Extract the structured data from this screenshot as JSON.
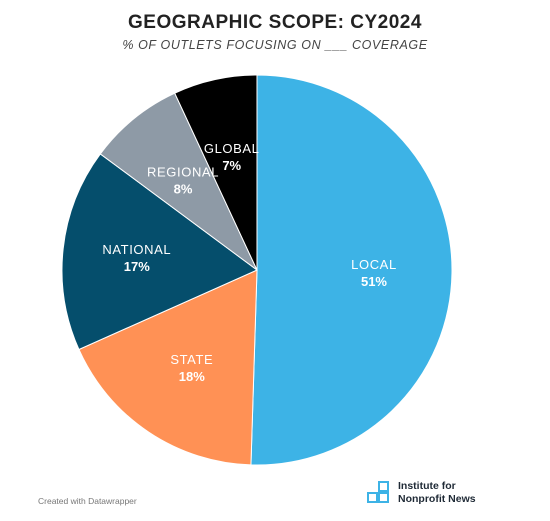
{
  "colors": {
    "local": "#3db3e6",
    "state": "#ff9155",
    "national": "#054e6c",
    "regional": "#8e9aa6",
    "global": "#000000",
    "logo": "#3db3e6"
  },
  "chart_data": {
    "type": "pie",
    "title": "GEOGRAPHIC SCOPE: CY2024",
    "subtitle": "% OF OUTLETS FOCUSING ON ___ COVERAGE",
    "slices": [
      {
        "label": "LOCAL",
        "value": 51,
        "display": "51%",
        "color": "#3db3e6",
        "text_color": "#ffffff"
      },
      {
        "label": "STATE",
        "value": 18,
        "display": "18%",
        "color": "#ff9155",
        "text_color": "#ffffff"
      },
      {
        "label": "NATIONAL",
        "value": 17,
        "display": "17%",
        "color": "#054e6c",
        "text_color": "#ffffff"
      },
      {
        "label": "REGIONAL",
        "value": 8,
        "display": "8%",
        "color": "#8e9aa6",
        "text_color": "#ffffff"
      },
      {
        "label": "GLOBAL",
        "value": 7,
        "display": "7%",
        "color": "#000000",
        "text_color": "#ffffff"
      }
    ]
  },
  "footer": {
    "credit": "Created with Datawrapper",
    "logo_line1": "Institute for",
    "logo_line2": "Nonprofit News",
    "logo_icon": "stacked-squares-icon"
  }
}
